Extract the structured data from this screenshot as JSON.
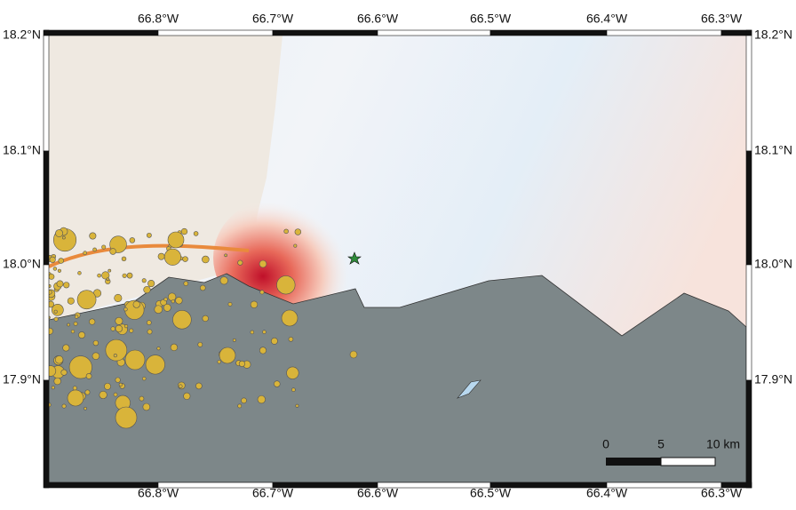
{
  "longitude_labels": [
    "66.8°W",
    "66.7°W",
    "66.6°W",
    "66.5°W",
    "66.4°W",
    "66.3°W"
  ],
  "latitude_labels": [
    "18.2°N",
    "18.1°N",
    "18.0°N",
    "17.9°N"
  ],
  "scale_bar": [
    "0",
    "5",
    "10 km"
  ]
}
